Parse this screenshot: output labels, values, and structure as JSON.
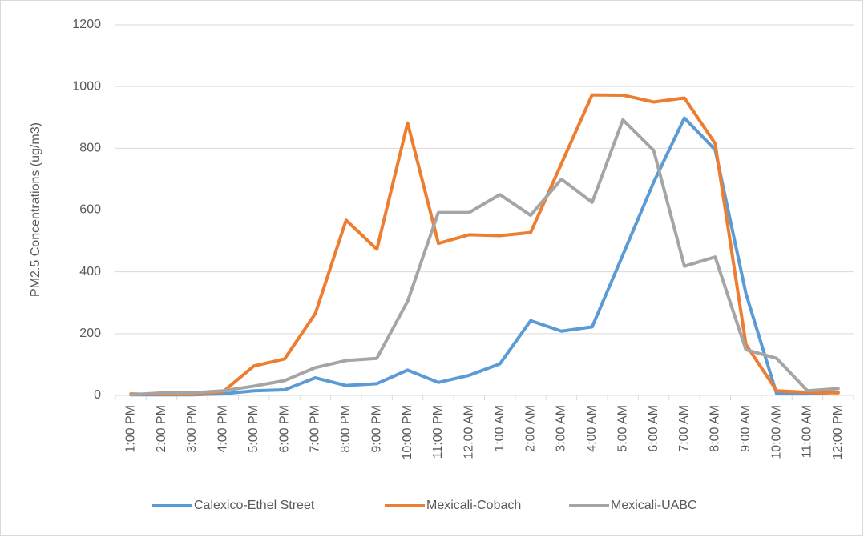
{
  "chart_data": {
    "type": "line",
    "y_label": "PM2.5 Concentrations (ug/m3)",
    "categories": [
      "1:00 PM",
      "2:00 PM",
      "3:00 PM",
      "4:00 PM",
      "5:00 PM",
      "6:00 PM",
      "7:00 PM",
      "8:00 PM",
      "9:00 PM",
      "10:00 PM",
      "11:00 PM",
      "12:00 AM",
      "1:00 AM",
      "2:00 AM",
      "3:00 AM",
      "4:00 AM",
      "5:00 AM",
      "6:00 AM",
      "7:00 AM",
      "8:00 AM",
      "9:00 AM",
      "10:00 AM",
      "11:00 AM",
      "12:00 PM"
    ],
    "series": [
      {
        "name": "Calexico-Ethel Street",
        "color": "#5b9bd5",
        "values": [
          2,
          2,
          2,
          5,
          15,
          18,
          57,
          32,
          38,
          82,
          42,
          65,
          102,
          242,
          208,
          222,
          455,
          690,
          898,
          795,
          330,
          5,
          5,
          10
        ]
      },
      {
        "name": "Mexicali-Cobach",
        "color": "#ed7d31",
        "values": [
          5,
          3,
          3,
          12,
          95,
          118,
          265,
          567,
          473,
          882,
          492,
          520,
          517,
          527,
          750,
          973,
          972,
          950,
          963,
          815,
          165,
          15,
          10,
          8
        ]
      },
      {
        "name": "Mexicali-UABC",
        "color": "#a5a5a5",
        "values": [
          2,
          8,
          8,
          15,
          30,
          48,
          90,
          113,
          120,
          305,
          592,
          592,
          650,
          583,
          700,
          625,
          892,
          793,
          418,
          448,
          148,
          120,
          15,
          22
        ]
      }
    ],
    "ylim": [
      0,
      1200
    ],
    "yticks": [
      0,
      200,
      400,
      600,
      800,
      1000,
      1200
    ],
    "grid": true,
    "legend": "bottom"
  }
}
